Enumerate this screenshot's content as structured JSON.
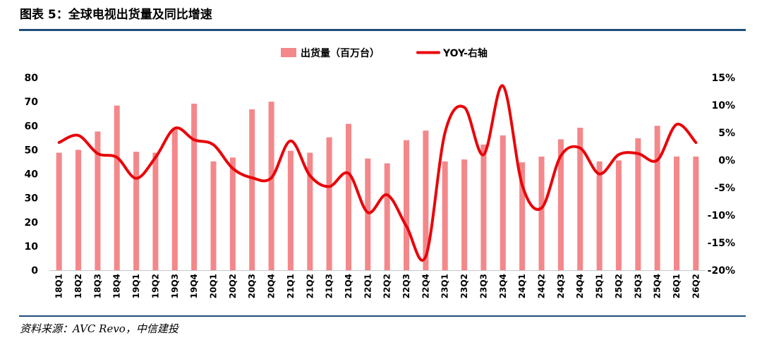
{
  "header": {
    "title": "图表 5：全球电视出货量及同比增速"
  },
  "footer": {
    "source": "资料来源：AVC Revo，中信建投"
  },
  "colors": {
    "bar": "#f4878a",
    "line": "#e8050a",
    "rule": "#1f4e79"
  },
  "chart_data": {
    "type": "bar+line",
    "categories": [
      "18Q1",
      "18Q2",
      "18Q3",
      "18Q4",
      "19Q1",
      "19Q2",
      "19Q3",
      "19Q4",
      "20Q1",
      "20Q2",
      "20Q3",
      "20Q4",
      "21Q1",
      "21Q2",
      "21Q3",
      "21Q4",
      "22Q1",
      "22Q2",
      "22Q3",
      "22Q4",
      "23Q1",
      "23Q2",
      "23Q3",
      "23Q4",
      "24Q1",
      "24Q2",
      "24Q3",
      "24Q4",
      "25Q1",
      "25Q2",
      "25Q3",
      "25Q4",
      "26Q1",
      "26Q2"
    ],
    "series": [
      {
        "name": "出货量（百万台）",
        "axis": "left",
        "kind": "bar",
        "values": [
          48.8,
          50.0,
          57.6,
          68.4,
          49.2,
          48.8,
          58.6,
          69.2,
          45.2,
          46.8,
          66.8,
          70.0,
          49.6,
          48.8,
          55.2,
          60.8,
          46.4,
          44.4,
          54.0,
          58.0,
          45.2,
          46.0,
          52.2,
          56.0,
          44.8,
          47.2,
          54.4,
          59.2,
          45.2,
          45.6,
          54.8,
          60.0,
          47.2,
          47.2
        ]
      },
      {
        "name": "YOY-右轴",
        "axis": "right",
        "kind": "line",
        "values": [
          3.2,
          4.5,
          1.2,
          0.5,
          -3.3,
          0.5,
          5.8,
          3.7,
          2.8,
          -1.5,
          -3.2,
          -3.2,
          3.5,
          -2.8,
          -4.8,
          -2.4,
          -9.5,
          -6.3,
          -12.0,
          -17.5,
          5.0,
          9.6,
          1.0,
          13.5,
          -4.5,
          -8.7,
          0.8,
          2.2,
          -2.5,
          1.0,
          1.2,
          0.0,
          6.5,
          3.2
        ]
      }
    ],
    "left_axis": {
      "min": 0,
      "max": 80,
      "step": 10,
      "tick_labels": [
        "0",
        "10",
        "20",
        "30",
        "40",
        "50",
        "60",
        "70",
        "80"
      ]
    },
    "right_axis": {
      "min": -20,
      "max": 15,
      "step": 5,
      "tick_labels": [
        "-20%",
        "-15%",
        "-10%",
        "-5%",
        "0%",
        "5%",
        "10%",
        "15%"
      ]
    },
    "legend": {
      "position": "top-center",
      "bar_label": "出货量（百万台）",
      "line_label": "YOY-右轴"
    },
    "grid": false
  }
}
